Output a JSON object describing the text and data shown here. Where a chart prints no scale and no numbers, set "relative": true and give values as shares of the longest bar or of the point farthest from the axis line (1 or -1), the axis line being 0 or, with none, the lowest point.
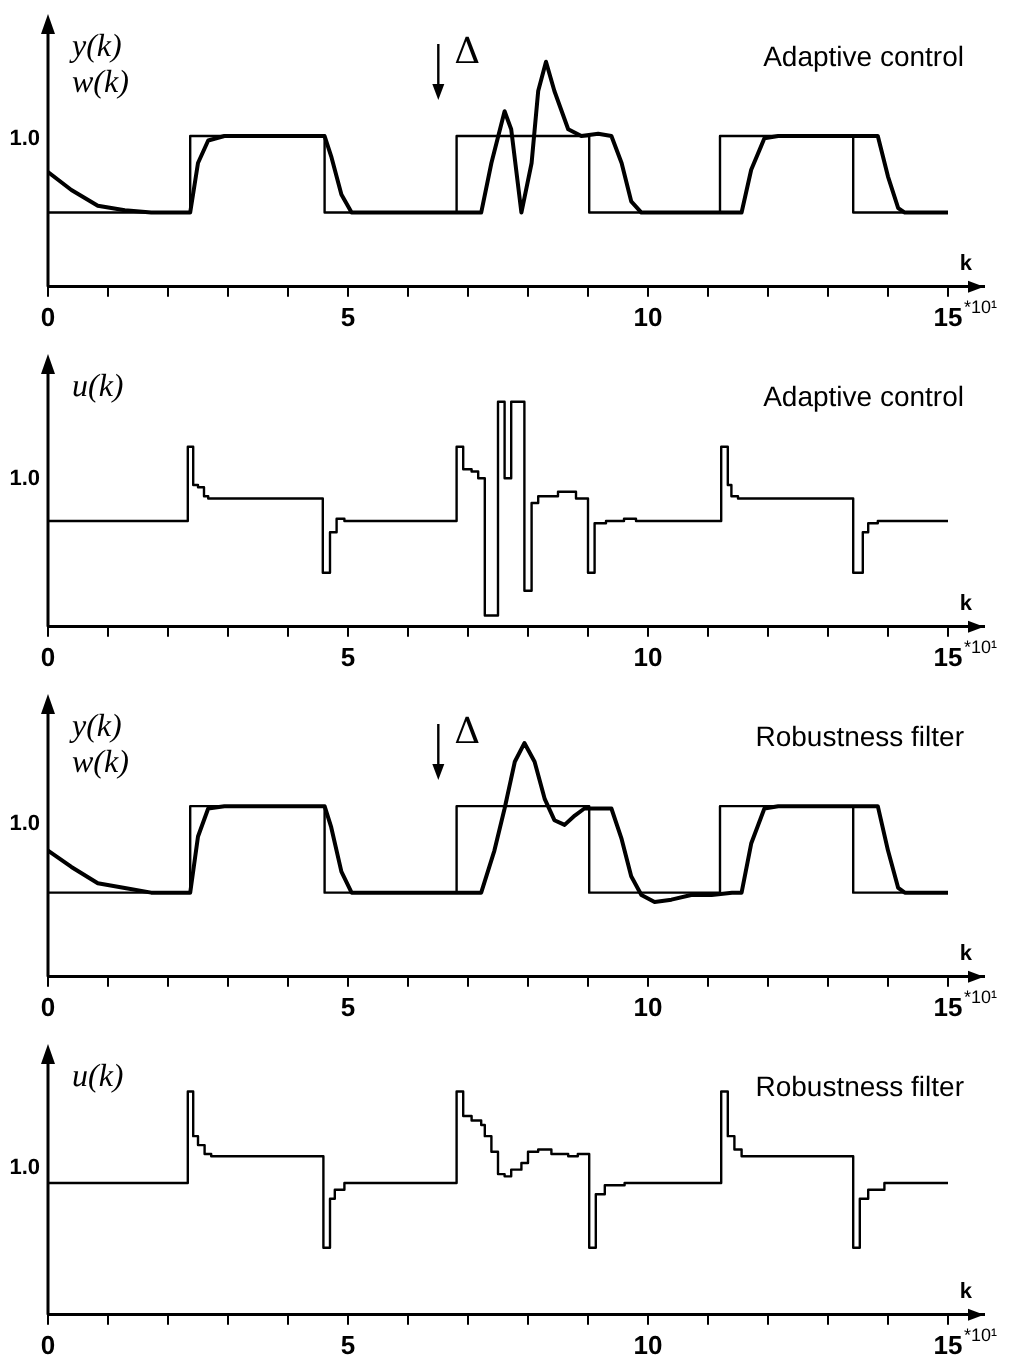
{
  "chart_data": [
    {
      "type": "line",
      "title": "Adaptive control",
      "ylabel": "y(k)\nw(k)",
      "xlabel": "k",
      "marker": "none",
      "relative": true,
      "annotations": [
        "1.0",
        "Δ",
        "*10¹"
      ],
      "xlim": [
        0,
        15.6
      ],
      "xticks": [
        0,
        {
          "value": 1,
          "label": null
        },
        {
          "value": 2,
          "label": null
        },
        {
          "value": 3,
          "label": null
        },
        {
          "value": 4,
          "label": null
        },
        5,
        {
          "value": 6,
          "label": null
        },
        {
          "value": 7,
          "label": null
        },
        {
          "value": 8,
          "label": null
        },
        {
          "value": 9,
          "label": null
        },
        10,
        {
          "value": 11,
          "label": null
        },
        {
          "value": 12,
          "label": null
        },
        {
          "value": 13,
          "label": null
        },
        {
          "value": 14,
          "label": null
        },
        15
      ],
      "series": [
        {
          "type": "step",
          "color": "#000000",
          "x": [
            0,
            2.37,
            4.61,
            6.81,
            9.02,
            11.2,
            13.42,
            15
          ],
          "values": [
            0.33,
            0.67,
            0.33,
            0.67,
            0.33,
            0.67,
            0.33,
            0.33
          ]
        },
        {
          "type": "line",
          "color": "#000000",
          "x": [
            0,
            0.39,
            0.83,
            1.28,
            1.72,
            2.37,
            2.5,
            2.67,
            2.94,
            4.61,
            4.72,
            4.89,
            5.06,
            7.22,
            7.39,
            7.61,
            7.72,
            7.89,
            8.06,
            8.17,
            8.3,
            8.44,
            8.67,
            8.89,
            9.17,
            9.39,
            9.56,
            9.72,
            9.89,
            11.56,
            11.72,
            11.94,
            12.17,
            13.83,
            14,
            14.17,
            14.28,
            15
          ],
          "values": [
            0.51,
            0.43,
            0.36,
            0.34,
            0.33,
            0.33,
            0.55,
            0.65,
            0.67,
            0.67,
            0.58,
            0.41,
            0.33,
            0.33,
            0.55,
            0.78,
            0.7,
            0.33,
            0.55,
            0.87,
            1,
            0.87,
            0.7,
            0.67,
            0.68,
            0.67,
            0.55,
            0.38,
            0.33,
            0.33,
            0.52,
            0.66,
            0.67,
            0.67,
            0.49,
            0.35,
            0.33,
            0.33
          ]
        }
      ]
    },
    {
      "type": "line",
      "title": "Adaptive control",
      "ylabel": "u(k)",
      "xlabel": "k",
      "marker": "none",
      "relative": true,
      "annotations": [
        "1.0",
        "*10¹"
      ],
      "xlim": [
        0,
        15.6
      ],
      "xticks": [
        0,
        {
          "value": 1,
          "label": null
        },
        {
          "value": 2,
          "label": null
        },
        {
          "value": 3,
          "label": null
        },
        {
          "value": 4,
          "label": null
        },
        5,
        {
          "value": 6,
          "label": null
        },
        {
          "value": 7,
          "label": null
        },
        {
          "value": 8,
          "label": null
        },
        {
          "value": 9,
          "label": null
        },
        10,
        {
          "value": 11,
          "label": null
        },
        {
          "value": 12,
          "label": null
        },
        {
          "value": 13,
          "label": null
        },
        {
          "value": 14,
          "label": null
        },
        15
      ],
      "series": [
        {
          "type": "step",
          "color": "#000000",
          "x": [
            0,
            2.33,
            2.42,
            2.5,
            2.6,
            2.67,
            4.58,
            4.7,
            4.81,
            4.94,
            6.81,
            6.92,
            7.06,
            7.17,
            7.28,
            7.5,
            7.61,
            7.72,
            7.94,
            8.06,
            8.17,
            8.5,
            8.8,
            9.0,
            9.11,
            9.3,
            9.6,
            9.8,
            11.22,
            11.33,
            11.39,
            11.5,
            13.42,
            13.58,
            13.67,
            13.83,
            15
          ],
          "values": [
            0.47,
            0.8,
            0.63,
            0.62,
            0.58,
            0.57,
            0.24,
            0.42,
            0.48,
            0.47,
            0.8,
            0.7,
            0.69,
            0.66,
            0.05,
            1,
            0.66,
            1,
            0.16,
            0.55,
            0.58,
            0.6,
            0.57,
            0.24,
            0.46,
            0.47,
            0.48,
            0.47,
            0.8,
            0.63,
            0.58,
            0.57,
            0.24,
            0.42,
            0.46,
            0.47,
            0.47
          ]
        }
      ]
    },
    {
      "type": "line",
      "title": "Robustness filter",
      "ylabel": "y(k)\nw(k)",
      "xlabel": "k",
      "marker": "none",
      "relative": true,
      "annotations": [
        "1.0",
        "Δ",
        "*10¹"
      ],
      "xlim": [
        0,
        15.6
      ],
      "xticks": [
        0,
        {
          "value": 1,
          "label": null
        },
        {
          "value": 2,
          "label": null
        },
        {
          "value": 3,
          "label": null
        },
        {
          "value": 4,
          "label": null
        },
        5,
        {
          "value": 6,
          "label": null
        },
        {
          "value": 7,
          "label": null
        },
        {
          "value": 8,
          "label": null
        },
        {
          "value": 9,
          "label": null
        },
        10,
        {
          "value": 11,
          "label": null
        },
        {
          "value": 12,
          "label": null
        },
        {
          "value": 13,
          "label": null
        },
        {
          "value": 14,
          "label": null
        },
        15
      ],
      "series": [
        {
          "type": "step",
          "color": "#000000",
          "x": [
            0,
            2.37,
            4.61,
            6.81,
            9.02,
            11.2,
            13.42,
            15
          ],
          "values": [
            0.36,
            0.73,
            0.36,
            0.73,
            0.36,
            0.73,
            0.36,
            0.36
          ]
        },
        {
          "type": "line",
          "color": "#000000",
          "x": [
            0,
            0.39,
            0.83,
            1.28,
            1.72,
            2.37,
            2.5,
            2.67,
            2.94,
            4.61,
            4.72,
            4.89,
            5.06,
            7.22,
            7.44,
            7.61,
            7.78,
            7.94,
            8.11,
            8.28,
            8.44,
            8.61,
            8.78,
            8.94,
            9.39,
            9.56,
            9.72,
            9.89,
            10.11,
            10.39,
            10.72,
            11.06,
            11.4,
            11.56,
            11.72,
            11.94,
            12.17,
            13.83,
            14,
            14.17,
            14.28,
            15
          ],
          "values": [
            0.54,
            0.47,
            0.4,
            0.38,
            0.36,
            0.36,
            0.6,
            0.72,
            0.73,
            0.73,
            0.64,
            0.45,
            0.36,
            0.36,
            0.54,
            0.72,
            0.92,
            1,
            0.92,
            0.76,
            0.67,
            0.65,
            0.69,
            0.72,
            0.72,
            0.59,
            0.43,
            0.35,
            0.32,
            0.33,
            0.35,
            0.35,
            0.36,
            0.36,
            0.57,
            0.72,
            0.73,
            0.73,
            0.54,
            0.38,
            0.36,
            0.36
          ]
        }
      ]
    },
    {
      "type": "line",
      "title": "Robustness filter",
      "ylabel": "u(k)",
      "xlabel": "k",
      "marker": "none",
      "relative": true,
      "annotations": [
        "1.0",
        "*10¹"
      ],
      "xlim": [
        0,
        15.6
      ],
      "xticks": [
        0,
        {
          "value": 1,
          "label": null
        },
        {
          "value": 2,
          "label": null
        },
        {
          "value": 3,
          "label": null
        },
        {
          "value": 4,
          "label": null
        },
        5,
        {
          "value": 6,
          "label": null
        },
        {
          "value": 7,
          "label": null
        },
        {
          "value": 8,
          "label": null
        },
        {
          "value": 9,
          "label": null
        },
        10,
        {
          "value": 11,
          "label": null
        },
        {
          "value": 12,
          "label": null
        },
        {
          "value": 13,
          "label": null
        },
        {
          "value": 14,
          "label": null
        },
        15
      ],
      "series": [
        {
          "type": "step",
          "color": "#000000",
          "x": [
            0,
            2.33,
            2.42,
            2.5,
            2.61,
            2.72,
            4.59,
            4.7,
            4.78,
            4.94,
            6.81,
            6.92,
            7.06,
            7.22,
            7.28,
            7.39,
            7.5,
            7.61,
            7.72,
            7.89,
            8.0,
            8.17,
            8.39,
            8.67,
            8.83,
            9.02,
            9.13,
            9.28,
            9.61,
            11.22,
            11.33,
            11.44,
            11.56,
            13.42,
            13.53,
            13.67,
            13.94,
            15
          ],
          "values": [
            0.59,
            1,
            0.8,
            0.76,
            0.72,
            0.71,
            0.3,
            0.52,
            0.56,
            0.59,
            1,
            0.89,
            0.87,
            0.85,
            0.8,
            0.73,
            0.63,
            0.62,
            0.65,
            0.68,
            0.73,
            0.74,
            0.72,
            0.71,
            0.72,
            0.3,
            0.54,
            0.58,
            0.59,
            1,
            0.8,
            0.74,
            0.71,
            0.3,
            0.52,
            0.56,
            0.59,
            0.59
          ]
        }
      ]
    }
  ]
}
